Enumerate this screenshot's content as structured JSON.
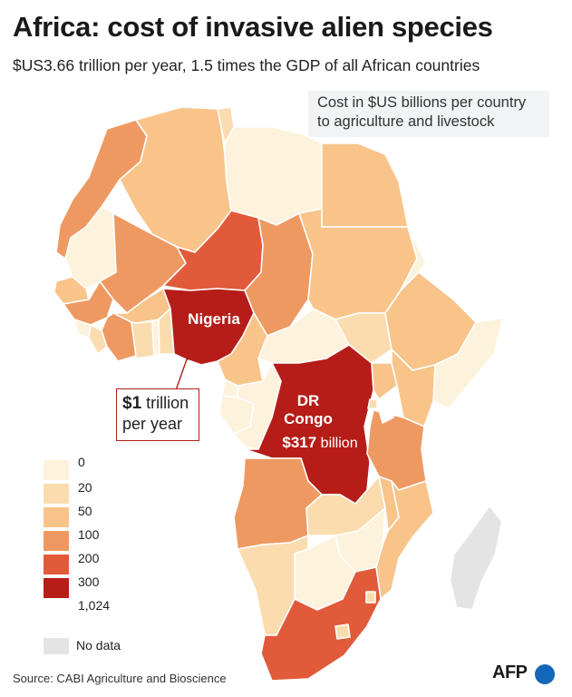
{
  "title": "Africa: cost of invasive alien species",
  "subtitle": "$US3.66 trillion per year, 1.5 times the GDP of all African countries",
  "map_note": [
    "Cost in $US billions per country",
    "to agriculture and livestock"
  ],
  "labels": {
    "nigeria": "Nigeria",
    "nigeria_callout_value": "$1",
    "nigeria_callout_unit": "trillion",
    "nigeria_callout_rest": "per year",
    "drc_line1": "DR",
    "drc_line2": "Congo",
    "drc_value": "$317",
    "drc_unit": "billion"
  },
  "scale": {
    "ticks": [
      "0",
      "20",
      "50",
      "100",
      "200",
      "300",
      "1,024"
    ],
    "colors": [
      "#fdf2dc",
      "#fbdcae",
      "#f8c48a",
      "#ee9962",
      "#e15a3a",
      "#b61d18"
    ],
    "no_data_label": "No data",
    "no_data_color": "#e4e4e4"
  },
  "source": "Source: CABI Agriculture and Bioscience",
  "credit": "AFP"
}
